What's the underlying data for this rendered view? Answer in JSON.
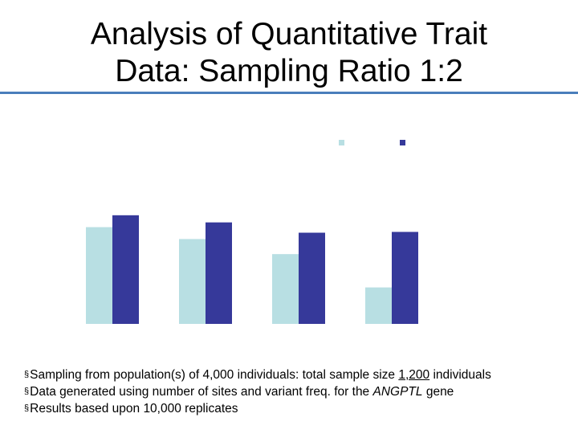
{
  "title": {
    "line1": "Analysis of Quantitative Trait",
    "line2": "Data: Sampling Ratio 1:2"
  },
  "colors": {
    "series1": "#b8dfe3",
    "series2": "#36399a",
    "rule": "#4a7ebb"
  },
  "chart_data": {
    "type": "bar",
    "title": "",
    "xlabel": "",
    "ylabel": "",
    "categories": [
      "",
      "",
      "",
      ""
    ],
    "series": [
      {
        "values": [
          122,
          107,
          88,
          46
        ]
      },
      {
        "values": [
          137,
          128,
          115,
          116
        ]
      }
    ],
    "ylim": [
      0,
      150
    ],
    "grid": false,
    "legend": "top-right"
  },
  "bullets": {
    "mark": "§",
    "item1": {
      "before": "Sampling from population(s) of 4,000 individuals: total sample size ",
      "underlined": "1,200",
      "after": " individuals"
    },
    "item2": {
      "before": "Data generated using number of sites and variant freq. for the ",
      "italic": "ANGPTL",
      "after": " gene"
    },
    "item3": {
      "text": "Results based upon 10,000 replicates"
    }
  }
}
